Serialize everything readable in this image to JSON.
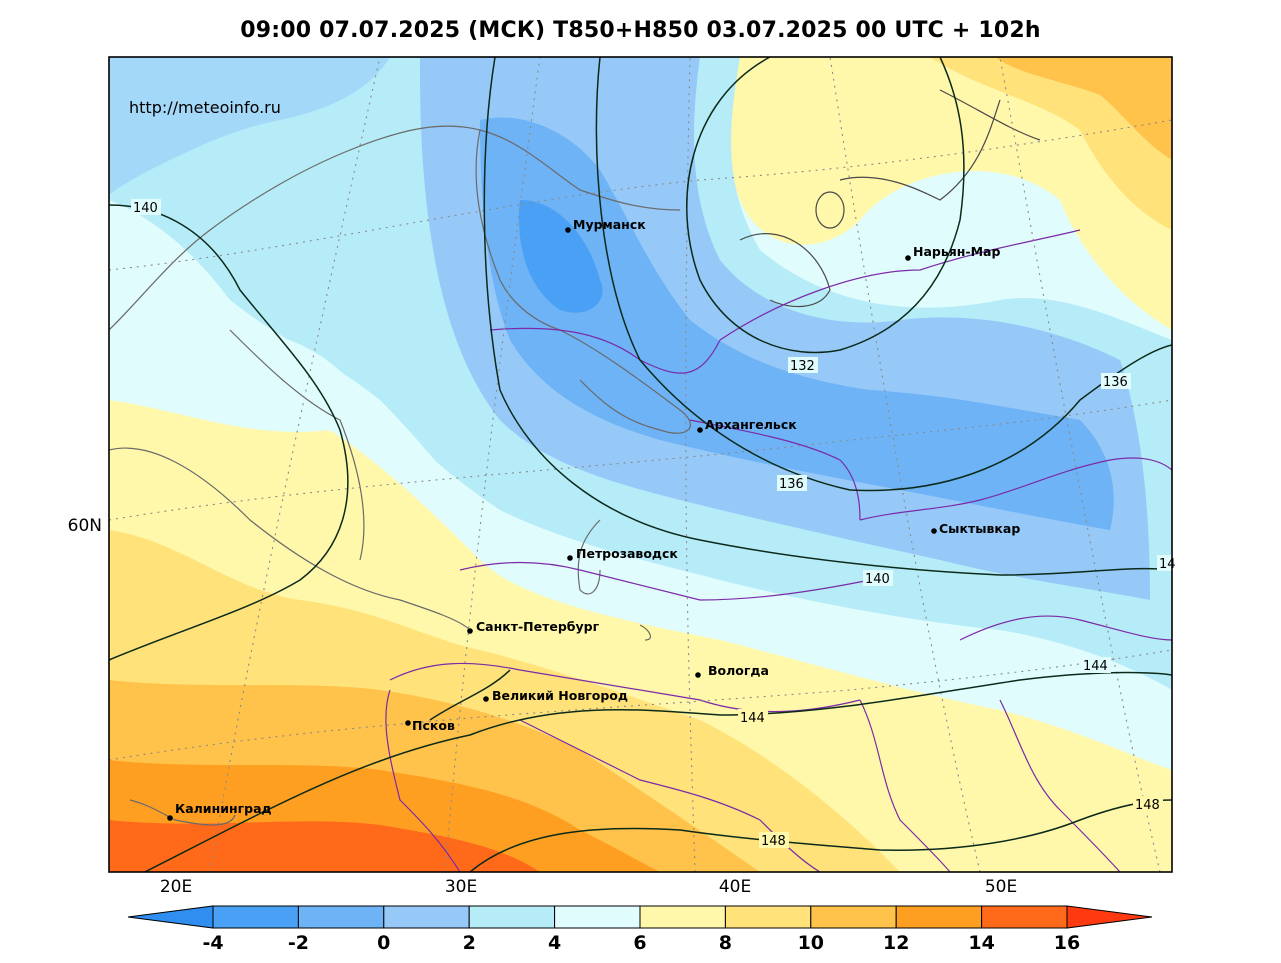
{
  "title": "09:00 07.07.2025 (МСК) T850+H850 03.07.2025 00 UTC + 102h",
  "watermark": "http://meteoinfo.ru",
  "lon_labels": [
    "20E",
    "30E",
    "40E",
    "50E"
  ],
  "lat_labels": [
    "60N"
  ],
  "cities": [
    {
      "name": "Мурманск"
    },
    {
      "name": "Нарьян-Мар"
    },
    {
      "name": "Архангельск"
    },
    {
      "name": "Сыктывкар"
    },
    {
      "name": "Петрозаводск"
    },
    {
      "name": "Санкт-Петербург"
    },
    {
      "name": "Вологда"
    },
    {
      "name": "Великий Новгород"
    },
    {
      "name": "Псков"
    },
    {
      "name": "Калининград"
    }
  ],
  "isolines": [
    "140",
    "132",
    "136",
    "136",
    "140",
    "144",
    "144",
    "148",
    "148",
    "14"
  ],
  "colorbar": {
    "ticks": [
      "-4",
      "-2",
      "0",
      "2",
      "4",
      "6",
      "8",
      "10",
      "12",
      "14",
      "16"
    ],
    "colors": [
      "#2f8ef0",
      "#4aa0f4",
      "#6db3f6",
      "#96c9f8",
      "#b6ecf8",
      "#e1fcfc",
      "#fff7aa",
      "#ffe27a",
      "#ffc24a",
      "#ff9f22",
      "#ff6a1a",
      "#ff3a10"
    ]
  }
}
